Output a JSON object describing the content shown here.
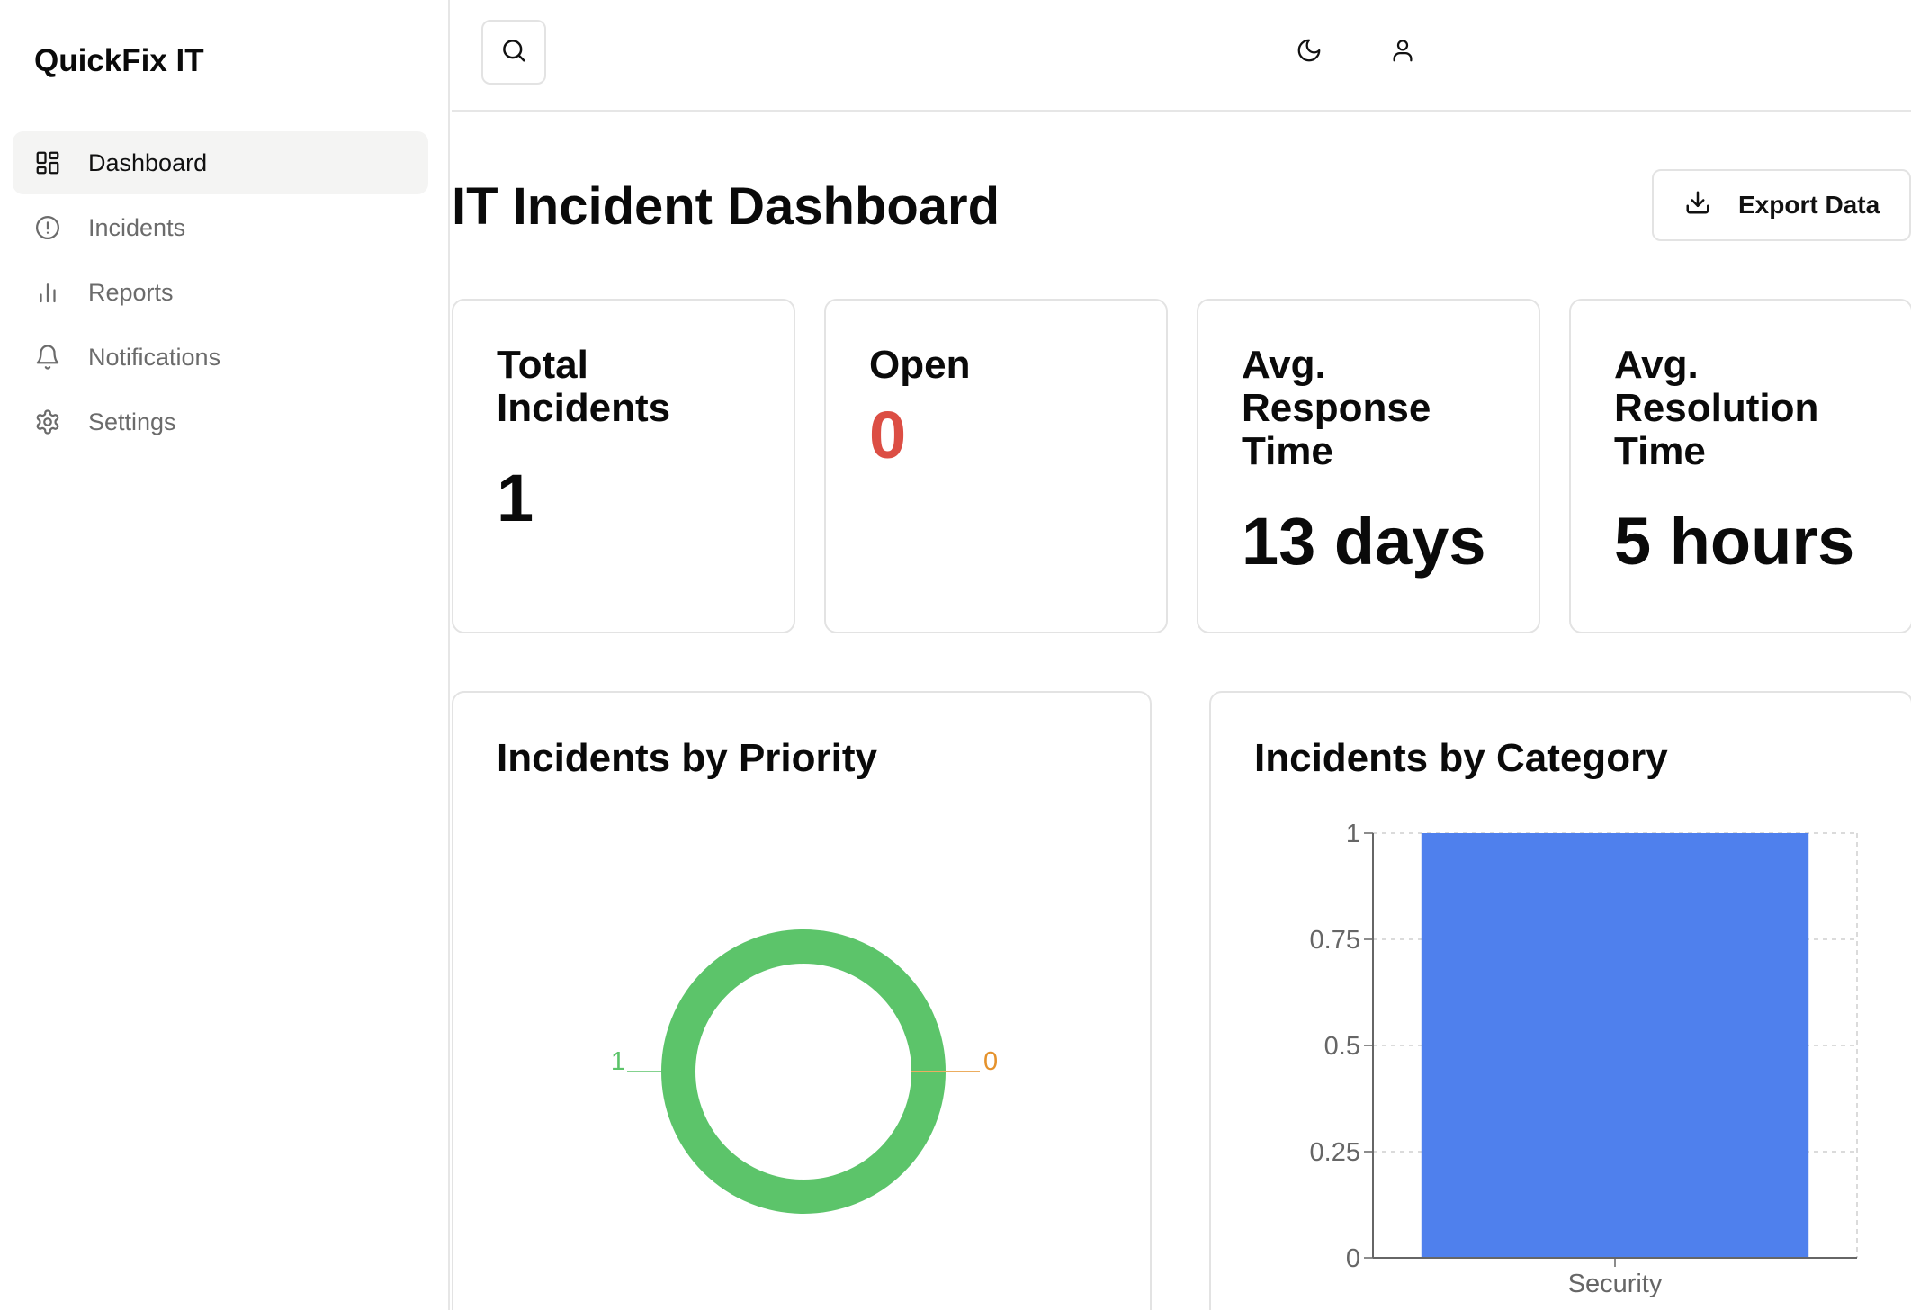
{
  "app": {
    "brand": "QuickFix IT"
  },
  "sidebar": {
    "items": [
      {
        "label": "Dashboard",
        "icon": "layout-grid-icon",
        "active": true
      },
      {
        "label": "Incidents",
        "icon": "alert-circle-icon",
        "active": false
      },
      {
        "label": "Reports",
        "icon": "bar-chart-icon",
        "active": false
      },
      {
        "label": "Notifications",
        "icon": "bell-icon",
        "active": false
      },
      {
        "label": "Settings",
        "icon": "gear-icon",
        "active": false
      }
    ]
  },
  "header": {
    "icons": [
      "search-icon",
      "moon-icon",
      "user-icon"
    ]
  },
  "main": {
    "title": "IT Incident Dashboard",
    "export_label": "Export Data",
    "stats": [
      {
        "label": "Total Incidents",
        "value": "1"
      },
      {
        "label": "Open",
        "value": "0"
      },
      {
        "label": "Avg. Response Time",
        "value": "13 days"
      },
      {
        "label": "Avg. Resolution Time",
        "value": "5 hours"
      }
    ]
  },
  "colors": {
    "open_value": "#dc4e44",
    "priority_low": "#5cc46a",
    "priority_other": "#e5922c",
    "bar": "#4f80ed"
  },
  "chart_data": [
    {
      "type": "pie",
      "title": "Incidents by Priority",
      "slices": [
        {
          "value": 1,
          "label": "1",
          "color": "#5cc46a"
        },
        {
          "value": 0,
          "label": "0",
          "color": "#e5922c"
        }
      ]
    },
    {
      "type": "bar",
      "title": "Incidents by Category",
      "categories": [
        "Security"
      ],
      "values": [
        1
      ],
      "ylim": [
        0,
        1
      ],
      "yticks": [
        "0",
        "0.25",
        "0.5",
        "0.75",
        "1"
      ],
      "grid": true
    }
  ]
}
